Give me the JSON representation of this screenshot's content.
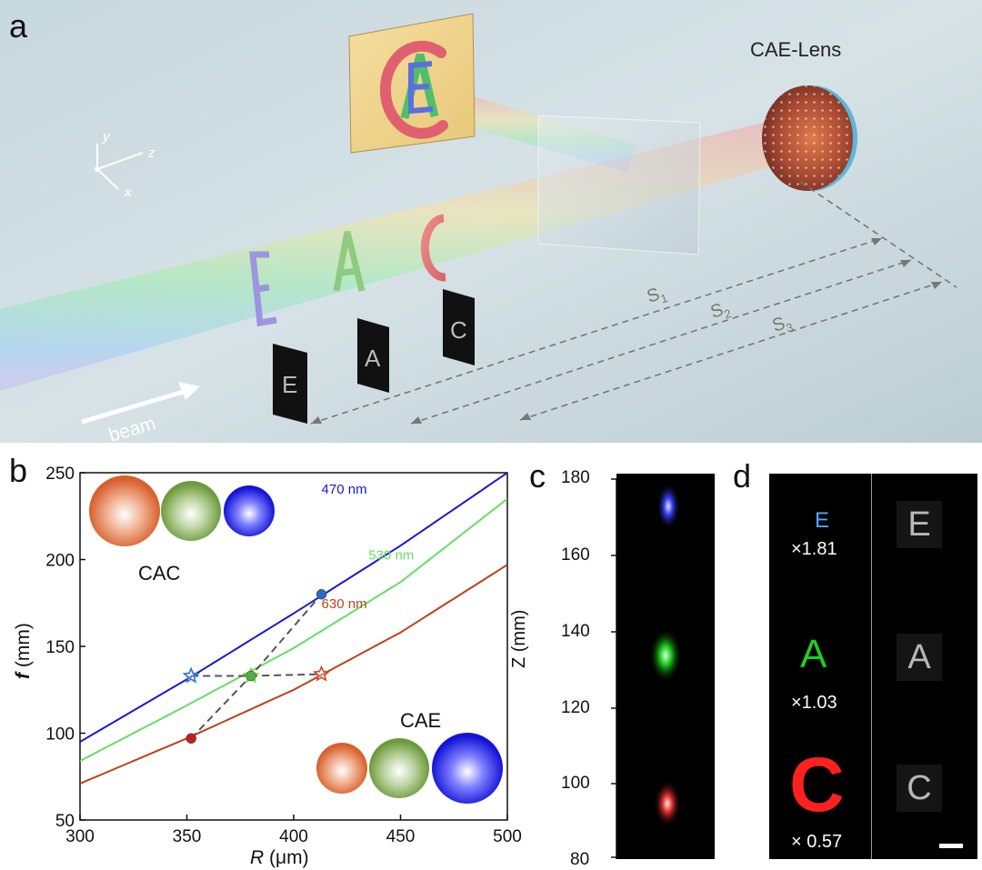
{
  "figure": {
    "panels": {
      "a": {
        "letter": "a",
        "lens_label": "CAE-Lens",
        "beam_label": "beam",
        "axes": {
          "x": "x",
          "y": "y",
          "z": "z"
        },
        "distances": [
          {
            "base": "S",
            "sub": "1"
          },
          {
            "base": "S",
            "sub": "2"
          },
          {
            "base": "S",
            "sub": "3"
          }
        ],
        "object_letters": [
          "E",
          "A",
          "C"
        ],
        "image_letters": [
          "E",
          "A",
          "C"
        ],
        "screen_letters": [
          "C",
          "A",
          "E"
        ]
      },
      "b": {
        "letter": "b",
        "label_cac": "CAC",
        "label_cae": "CAE",
        "ylabel_italic": "f",
        "ylabel_unit": "(mm)",
        "xlabel_italic": "R",
        "xlabel_unit": "(μm)"
      },
      "c": {
        "letter": "c",
        "ylabel": "Z (mm)",
        "yticks": [
          "180",
          "160",
          "140",
          "120",
          "100",
          "80"
        ]
      },
      "d": {
        "letter": "d",
        "letters": [
          "E",
          "A",
          "C"
        ],
        "magnifications": [
          "×1.81",
          "×1.03",
          "× 0.57"
        ]
      }
    }
  },
  "chart_data": {
    "type": "line",
    "xlim": [
      300,
      500
    ],
    "ylim": [
      50,
      250
    ],
    "xticks": [
      300,
      350,
      400,
      450,
      500
    ],
    "yticks": [
      50,
      100,
      150,
      200,
      250
    ],
    "series": [
      {
        "name": "470 nm",
        "color": "#1a1acc",
        "x": [
          300,
          350,
          400,
          450,
          500
        ],
        "y": [
          95,
          131,
          169,
          208,
          250
        ]
      },
      {
        "name": "530 nm",
        "color": "#66dd66",
        "x": [
          300,
          350,
          400,
          450,
          500
        ],
        "y": [
          84,
          116,
          149,
          187,
          235
        ]
      },
      {
        "name": "630 nm",
        "color": "#c0401a",
        "x": [
          300,
          350,
          400,
          450,
          500
        ],
        "y": [
          71,
          97,
          125,
          158,
          197
        ]
      }
    ],
    "cac_points": [
      {
        "x": 352,
        "y": 133,
        "color": "#1e78d0"
      },
      {
        "x": 380,
        "y": 133,
        "color": "#9ad028"
      },
      {
        "x": 413,
        "y": 134,
        "color": "#d04a2a"
      }
    ],
    "cae_points": [
      {
        "x": 352,
        "y": 97,
        "color": "#c02020"
      },
      {
        "x": 380,
        "y": 133,
        "color": "#4caf50"
      },
      {
        "x": 413,
        "y": 180,
        "color": "#2a6abf"
      }
    ],
    "legend_colors": {
      "blue": "#1a1acc",
      "green": "#66dd66",
      "red": "#c0401a"
    }
  }
}
